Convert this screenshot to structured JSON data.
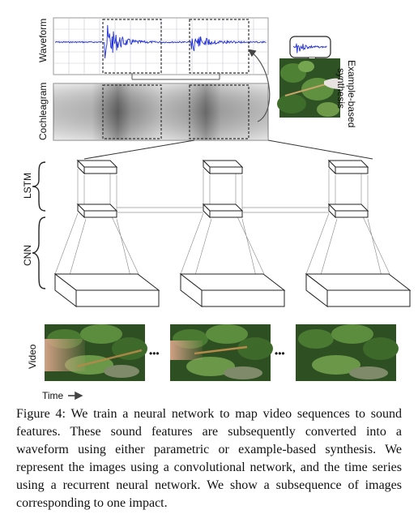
{
  "labels": {
    "waveform": "Waveform",
    "cochleagram": "Cochleagram",
    "lstm": "LSTM",
    "cnn": "CNN",
    "video": "Video",
    "time": "Time",
    "example_based": [
      "Example-based",
      "synthesis"
    ],
    "ellipsis": "•••"
  },
  "caption": {
    "figure_label": "Figure 4:",
    "text": "We train a neural network to map video sequences to sound features. These sound features are subsequently converted into a waveform using either parametric or example-based synthesis. We represent the images using a convolutional network, and the time series using a recurrent neural network. We show a subsequence of images corresponding to one impact."
  },
  "colors": {
    "waveform": "#1f2fd6",
    "grid": "#c9c9d6",
    "line": "#444444",
    "foliage_dark": "#1f3a1a",
    "foliage_mid": "#3d6b2e",
    "foliage_light": "#6e9a4a",
    "stick": "#b58a4a",
    "skin": "#d9a58a"
  }
}
